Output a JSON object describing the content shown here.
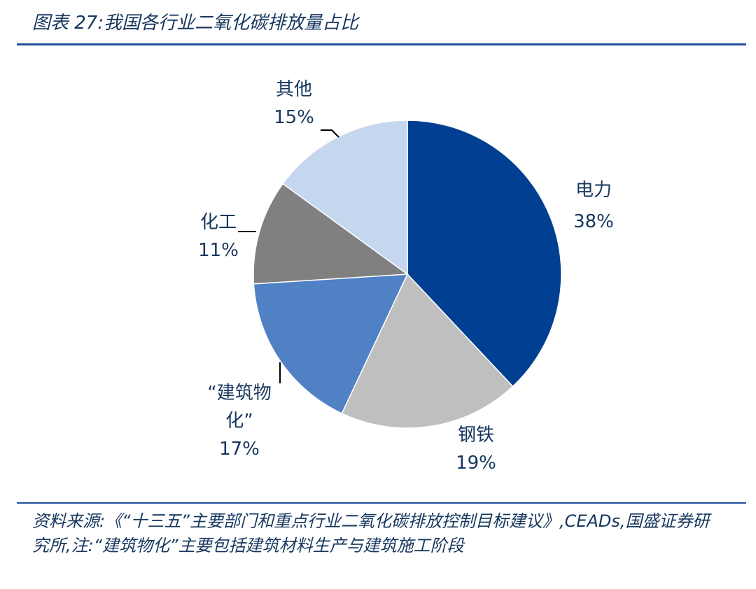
{
  "title": "图表 27:我国各行业二氧化碳排放量占比",
  "source": "资料来源:《“十三五”主要部门和重点行业二氧化碳排放控制目标建议》,CEADs,国盛证券研究所,注:“建筑物化”主要包括建筑材料生产与建筑施工阶段",
  "chart_data": {
    "type": "pie",
    "title": "我国各行业二氧化碳排放量占比",
    "slices": [
      {
        "label": "电力",
        "value": 38,
        "percent_label": "38%",
        "color": "#003f91"
      },
      {
        "label": "钢铁",
        "value": 19,
        "percent_label": "19%",
        "color": "#bfbfbf"
      },
      {
        "label": "“建筑物化”",
        "value": 17,
        "percent_label": "17%",
        "color": "#4f81c4"
      },
      {
        "label": "化工",
        "value": 11,
        "percent_label": "11%",
        "color": "#808080"
      },
      {
        "label": "其他",
        "value": 15,
        "percent_label": "15%",
        "color": "#c5d6ef"
      }
    ],
    "start_angle": "12 o'clock",
    "direction": "clockwise",
    "legend": "none"
  }
}
